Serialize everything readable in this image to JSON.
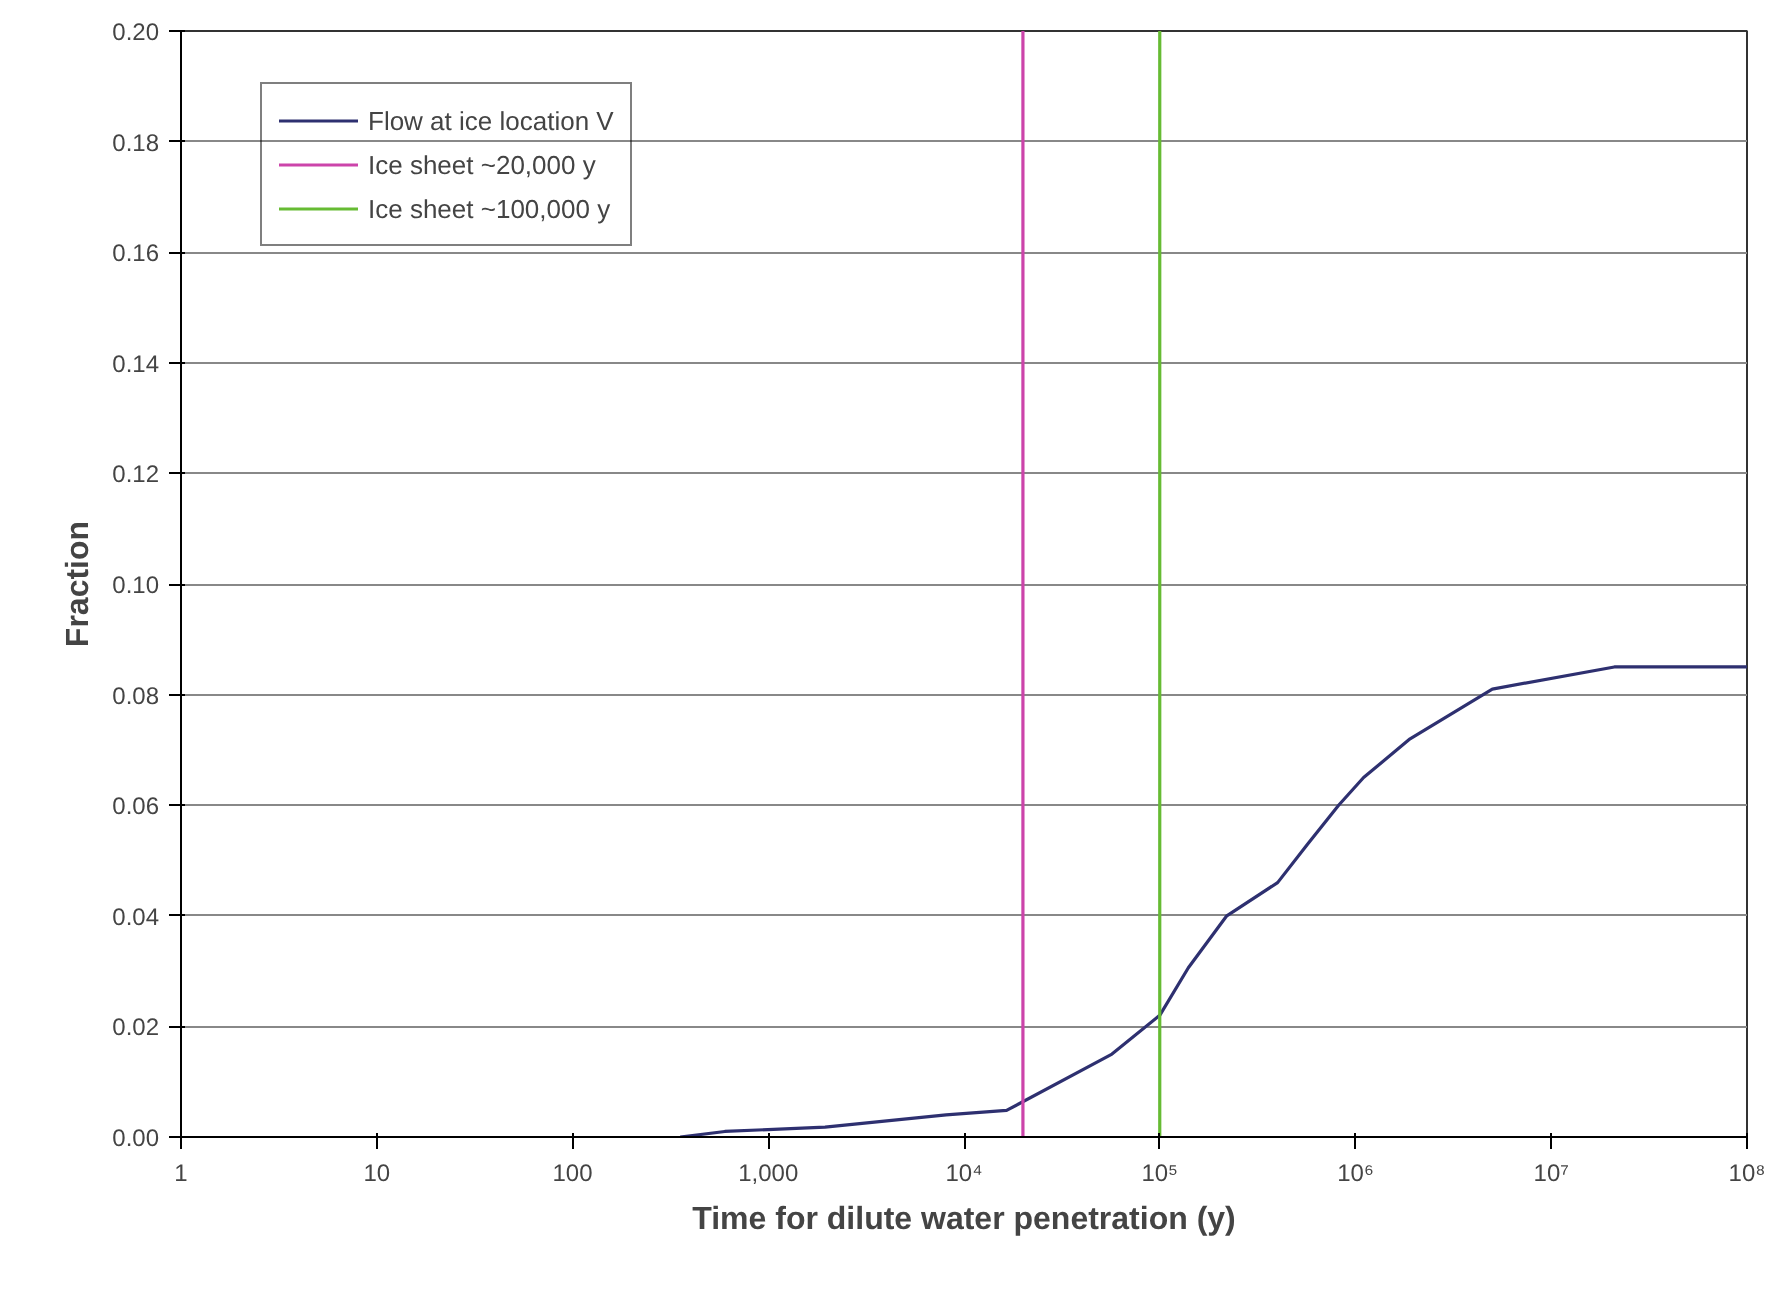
{
  "chart_data": {
    "type": "line",
    "xlabel": "Time for dilute water penetration (y)",
    "ylabel": "Fraction",
    "log": "x",
    "grid": "y",
    "legend": "top left",
    "xlim": [
      1,
      100000000
    ],
    "ylim": [
      0,
      0.2
    ],
    "xticks": [
      1,
      10,
      100,
      {
        "value": 1000,
        "label": "1,000"
      },
      {
        "value": 10000,
        "label": "10⁴"
      },
      {
        "value": 100000,
        "label": "10⁵"
      },
      {
        "value": 1000000,
        "label": "10⁶"
      },
      {
        "value": 10000000,
        "label": "10⁷"
      },
      {
        "value": 100000000,
        "label": "10⁸"
      }
    ],
    "yticks": [
      {
        "value": 0,
        "label": "0.00"
      },
      {
        "value": 0.02,
        "label": "0.02"
      },
      {
        "value": 0.04,
        "label": "0.04"
      },
      {
        "value": 0.06,
        "label": "0.06"
      },
      {
        "value": 0.08,
        "label": "0.08"
      },
      {
        "value": 0.1,
        "label": "0.10"
      },
      {
        "value": 0.12,
        "label": "0.12"
      },
      {
        "value": 0.14,
        "label": "0.14"
      },
      {
        "value": 0.16,
        "label": "0.16"
      },
      {
        "value": 0.18,
        "label": "0.18"
      },
      {
        "value": 0.2,
        "label": "0.20"
      }
    ],
    "series": [
      {
        "name": "Flow at ice location V",
        "color": "#2e3070",
        "x": [
          355,
          600,
          1950,
          8100,
          16500,
          57000,
          100000,
          140000,
          220000,
          400000,
          570000,
          820000,
          1100000,
          1900000,
          5000000,
          21000000,
          100000000
        ],
        "values": [
          0,
          0.001,
          0.0018,
          0.004,
          0.0048,
          0.015,
          0.022,
          0.0306,
          0.04,
          0.046,
          0.053,
          0.06,
          0.065,
          0.072,
          0.081,
          0.085,
          0.085
        ]
      },
      {
        "name": "Ice sheet ~20,000 y",
        "color": "#cc44aa",
        "x": [
          20000,
          20000
        ],
        "values": [
          0,
          0.2
        ]
      },
      {
        "name": "Ice sheet ~100,000 y",
        "color": "#66bb33",
        "x": [
          100000,
          100000
        ],
        "values": [
          0,
          0.2
        ]
      }
    ]
  }
}
